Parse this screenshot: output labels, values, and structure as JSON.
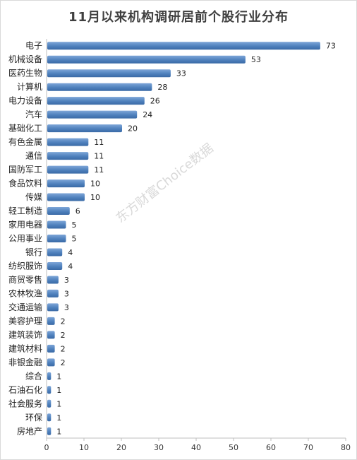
{
  "chart_data": {
    "type": "bar",
    "orientation": "horizontal",
    "title": "11月以来机构调研居前个股行业分布",
    "categories": [
      "电子",
      "机械设备",
      "医药生物",
      "计算机",
      "电力设备",
      "汽车",
      "基础化工",
      "有色金属",
      "通信",
      "国防军工",
      "食品饮料",
      "传媒",
      "轻工制造",
      "家用电器",
      "公用事业",
      "银行",
      "纺织服饰",
      "商贸零售",
      "农林牧渔",
      "交通运输",
      "美容护理",
      "建筑装饰",
      "建筑材料",
      "非银金融",
      "综合",
      "石油石化",
      "社会服务",
      "环保",
      "房地产"
    ],
    "values": [
      73,
      53,
      33,
      28,
      26,
      24,
      20,
      11,
      11,
      11,
      10,
      10,
      6,
      5,
      5,
      4,
      4,
      3,
      3,
      3,
      2,
      2,
      2,
      2,
      1,
      1,
      1,
      1,
      1
    ],
    "xlim": [
      0,
      80
    ],
    "xticks": [
      0,
      10,
      20,
      30,
      40,
      50,
      60,
      70,
      80
    ],
    "grid": false,
    "bar_color": "#4f81bd"
  },
  "watermark": "东方财富Choice数据"
}
